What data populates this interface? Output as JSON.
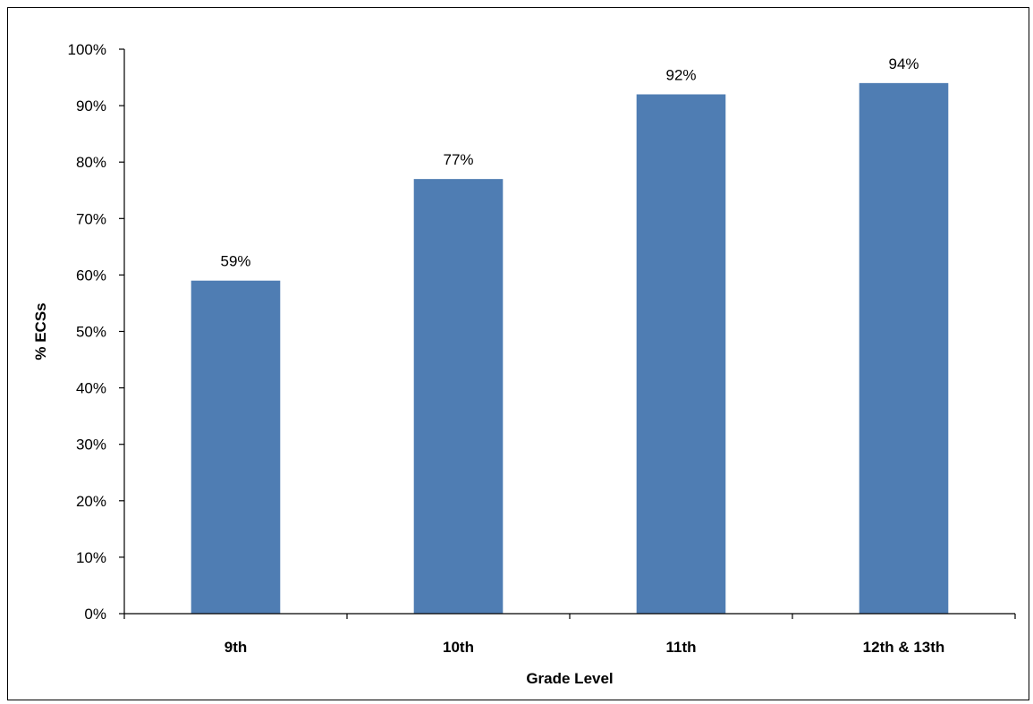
{
  "colors": {
    "bar": "#4f7db3",
    "axis": "#000000",
    "text": "#000000",
    "background": "#ffffff"
  },
  "chart_data": {
    "type": "bar",
    "categories": [
      "9th",
      "10th",
      "11th",
      "12th & 13th"
    ],
    "values": [
      59,
      77,
      92,
      94
    ],
    "data_labels": [
      "59%",
      "77%",
      "92%",
      "94%"
    ],
    "title": "",
    "xlabel": "Grade Level",
    "ylabel": "% ECSs",
    "ylim": [
      0,
      100
    ],
    "y_ticks": [
      0,
      10,
      20,
      30,
      40,
      50,
      60,
      70,
      80,
      90,
      100
    ],
    "y_tick_labels": [
      "0%",
      "10%",
      "20%",
      "30%",
      "40%",
      "50%",
      "60%",
      "70%",
      "80%",
      "90%",
      "100%"
    ],
    "grid": false,
    "legend": false
  }
}
